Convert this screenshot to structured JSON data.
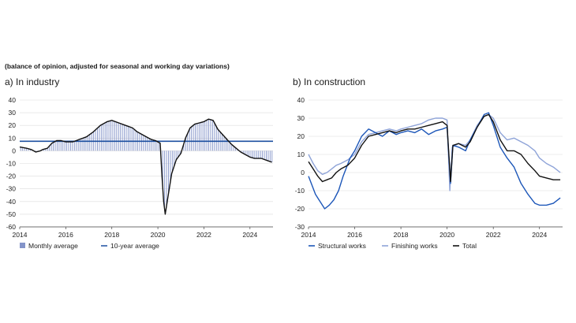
{
  "subtitle": "(balance of opinion, adjusted for seasonal and working day variations)",
  "colors": {
    "monthly_bar": "#8494c9",
    "ten_year": "#1c4fa0",
    "black": "#111111",
    "structural": "#1c56b8",
    "finishing": "#8ea3d8",
    "grid": "#dcdcdc"
  },
  "chart_data": [
    {
      "id": "industry",
      "type": "bar+line",
      "title": "a)  In industry",
      "xlim": [
        2014,
        2025
      ],
      "ylim": [
        -60,
        40
      ],
      "x_ticks": [
        "2014",
        "2016",
        "2018",
        "2020",
        "2022",
        "2024"
      ],
      "y_ticks": [
        "40",
        "30",
        "20",
        "10",
        "0",
        "-10",
        "-20",
        "-30",
        "-40",
        "-50",
        "-60"
      ],
      "legend": [
        "Monthly average",
        "10-year average"
      ],
      "ten_year_average": 7.5,
      "monthly_points": [
        [
          2014.0,
          3
        ],
        [
          2014.3,
          2
        ],
        [
          2014.5,
          1
        ],
        [
          2014.7,
          -1
        ],
        [
          2014.9,
          0
        ],
        [
          2015.0,
          1
        ],
        [
          2015.2,
          2
        ],
        [
          2015.4,
          6
        ],
        [
          2015.6,
          8
        ],
        [
          2015.8,
          8
        ],
        [
          2016.0,
          7
        ],
        [
          2016.3,
          7
        ],
        [
          2016.6,
          9
        ],
        [
          2016.9,
          11
        ],
        [
          2017.2,
          15
        ],
        [
          2017.5,
          20
        ],
        [
          2017.8,
          23
        ],
        [
          2018.0,
          24
        ],
        [
          2018.3,
          22
        ],
        [
          2018.6,
          20
        ],
        [
          2018.9,
          18
        ],
        [
          2019.1,
          15
        ],
        [
          2019.4,
          12
        ],
        [
          2019.7,
          9
        ],
        [
          2019.9,
          8
        ],
        [
          2020.0,
          7
        ],
        [
          2020.1,
          6
        ],
        [
          2020.18,
          -20
        ],
        [
          2020.25,
          -40
        ],
        [
          2020.32,
          -50
        ],
        [
          2020.45,
          -35
        ],
        [
          2020.6,
          -18
        ],
        [
          2020.8,
          -7
        ],
        [
          2021.0,
          -2
        ],
        [
          2021.2,
          10
        ],
        [
          2021.4,
          18
        ],
        [
          2021.6,
          21
        ],
        [
          2021.8,
          22
        ],
        [
          2022.0,
          23
        ],
        [
          2022.2,
          25
        ],
        [
          2022.4,
          24
        ],
        [
          2022.6,
          17
        ],
        [
          2022.8,
          13
        ],
        [
          2023.0,
          9
        ],
        [
          2023.2,
          5
        ],
        [
          2023.4,
          2
        ],
        [
          2023.6,
          -1
        ],
        [
          2023.8,
          -3
        ],
        [
          2024.0,
          -5
        ],
        [
          2024.2,
          -6
        ],
        [
          2024.5,
          -6
        ],
        [
          2024.8,
          -8
        ],
        [
          2024.95,
          -9
        ]
      ]
    },
    {
      "id": "construction",
      "type": "line",
      "title": "b)  In construction",
      "xlim": [
        2014,
        2025
      ],
      "ylim": [
        -30,
        40
      ],
      "x_ticks": [
        "2014",
        "2016",
        "2018",
        "2020",
        "2022",
        "2024"
      ],
      "y_ticks": [
        "40",
        "30",
        "20",
        "10",
        "0",
        "-10",
        "-20",
        "-30"
      ],
      "series": [
        {
          "name": "Structural works",
          "points": [
            [
              2014.0,
              -2
            ],
            [
              2014.3,
              -12
            ],
            [
              2014.5,
              -16
            ],
            [
              2014.7,
              -20
            ],
            [
              2014.9,
              -18
            ],
            [
              2015.1,
              -15
            ],
            [
              2015.3,
              -10
            ],
            [
              2015.5,
              -2
            ],
            [
              2015.8,
              8
            ],
            [
              2016.0,
              12
            ],
            [
              2016.3,
              20
            ],
            [
              2016.6,
              24
            ],
            [
              2016.9,
              22
            ],
            [
              2017.2,
              20
            ],
            [
              2017.5,
              23
            ],
            [
              2017.8,
              21
            ],
            [
              2018.0,
              22
            ],
            [
              2018.3,
              23
            ],
            [
              2018.6,
              22
            ],
            [
              2018.9,
              24
            ],
            [
              2019.2,
              21
            ],
            [
              2019.5,
              23
            ],
            [
              2019.8,
              24
            ],
            [
              2020.0,
              25
            ],
            [
              2020.15,
              -6
            ],
            [
              2020.25,
              15
            ],
            [
              2020.5,
              14
            ],
            [
              2020.8,
              12
            ],
            [
              2021.0,
              18
            ],
            [
              2021.3,
              25
            ],
            [
              2021.6,
              32
            ],
            [
              2021.8,
              33
            ],
            [
              2022.0,
              26
            ],
            [
              2022.3,
              14
            ],
            [
              2022.6,
              8
            ],
            [
              2022.9,
              3
            ],
            [
              2023.2,
              -6
            ],
            [
              2023.5,
              -12
            ],
            [
              2023.8,
              -17
            ],
            [
              2024.0,
              -18
            ],
            [
              2024.3,
              -18
            ],
            [
              2024.6,
              -17
            ],
            [
              2024.9,
              -14
            ]
          ]
        },
        {
          "name": "Finishing works",
          "points": [
            [
              2014.0,
              10
            ],
            [
              2014.2,
              5
            ],
            [
              2014.4,
              1
            ],
            [
              2014.6,
              -1
            ],
            [
              2014.8,
              0
            ],
            [
              2015.0,
              2
            ],
            [
              2015.2,
              4
            ],
            [
              2015.4,
              5
            ],
            [
              2015.7,
              7
            ],
            [
              2016.0,
              10
            ],
            [
              2016.3,
              17
            ],
            [
              2016.6,
              21
            ],
            [
              2016.9,
              22
            ],
            [
              2017.2,
              23
            ],
            [
              2017.5,
              24
            ],
            [
              2017.8,
              23
            ],
            [
              2018.0,
              24
            ],
            [
              2018.3,
              25
            ],
            [
              2018.6,
              26
            ],
            [
              2018.9,
              27
            ],
            [
              2019.2,
              29
            ],
            [
              2019.5,
              30
            ],
            [
              2019.8,
              30
            ],
            [
              2020.0,
              29
            ],
            [
              2020.12,
              -10
            ],
            [
              2020.22,
              14
            ],
            [
              2020.5,
              16
            ],
            [
              2020.8,
              15
            ],
            [
              2021.0,
              18
            ],
            [
              2021.3,
              26
            ],
            [
              2021.6,
              31
            ],
            [
              2021.8,
              32
            ],
            [
              2022.0,
              30
            ],
            [
              2022.3,
              22
            ],
            [
              2022.6,
              18
            ],
            [
              2022.9,
              19
            ],
            [
              2023.2,
              17
            ],
            [
              2023.5,
              15
            ],
            [
              2023.8,
              12
            ],
            [
              2024.0,
              8
            ],
            [
              2024.3,
              5
            ],
            [
              2024.6,
              3
            ],
            [
              2024.9,
              0
            ]
          ]
        },
        {
          "name": "Total",
          "points": [
            [
              2014.0,
              6
            ],
            [
              2014.2,
              2
            ],
            [
              2014.4,
              -2
            ],
            [
              2014.6,
              -5
            ],
            [
              2014.8,
              -4
            ],
            [
              2015.0,
              -3
            ],
            [
              2015.2,
              0
            ],
            [
              2015.4,
              2
            ],
            [
              2015.7,
              4
            ],
            [
              2016.0,
              8
            ],
            [
              2016.3,
              15
            ],
            [
              2016.6,
              20
            ],
            [
              2016.9,
              21
            ],
            [
              2017.2,
              22
            ],
            [
              2017.5,
              23
            ],
            [
              2017.8,
              22
            ],
            [
              2018.0,
              23
            ],
            [
              2018.3,
              24
            ],
            [
              2018.6,
              24
            ],
            [
              2018.9,
              25
            ],
            [
              2019.2,
              26
            ],
            [
              2019.5,
              27
            ],
            [
              2019.8,
              28
            ],
            [
              2020.0,
              26
            ],
            [
              2020.15,
              -5
            ],
            [
              2020.25,
              15
            ],
            [
              2020.5,
              16
            ],
            [
              2020.8,
              14
            ],
            [
              2021.0,
              17
            ],
            [
              2021.3,
              25
            ],
            [
              2021.6,
              31
            ],
            [
              2021.8,
              32
            ],
            [
              2022.0,
              28
            ],
            [
              2022.3,
              18
            ],
            [
              2022.6,
              12
            ],
            [
              2022.9,
              12
            ],
            [
              2023.2,
              10
            ],
            [
              2023.5,
              5
            ],
            [
              2023.8,
              1
            ],
            [
              2024.0,
              -2
            ],
            [
              2024.3,
              -3
            ],
            [
              2024.6,
              -4
            ],
            [
              2024.9,
              -4
            ]
          ]
        }
      ]
    }
  ]
}
